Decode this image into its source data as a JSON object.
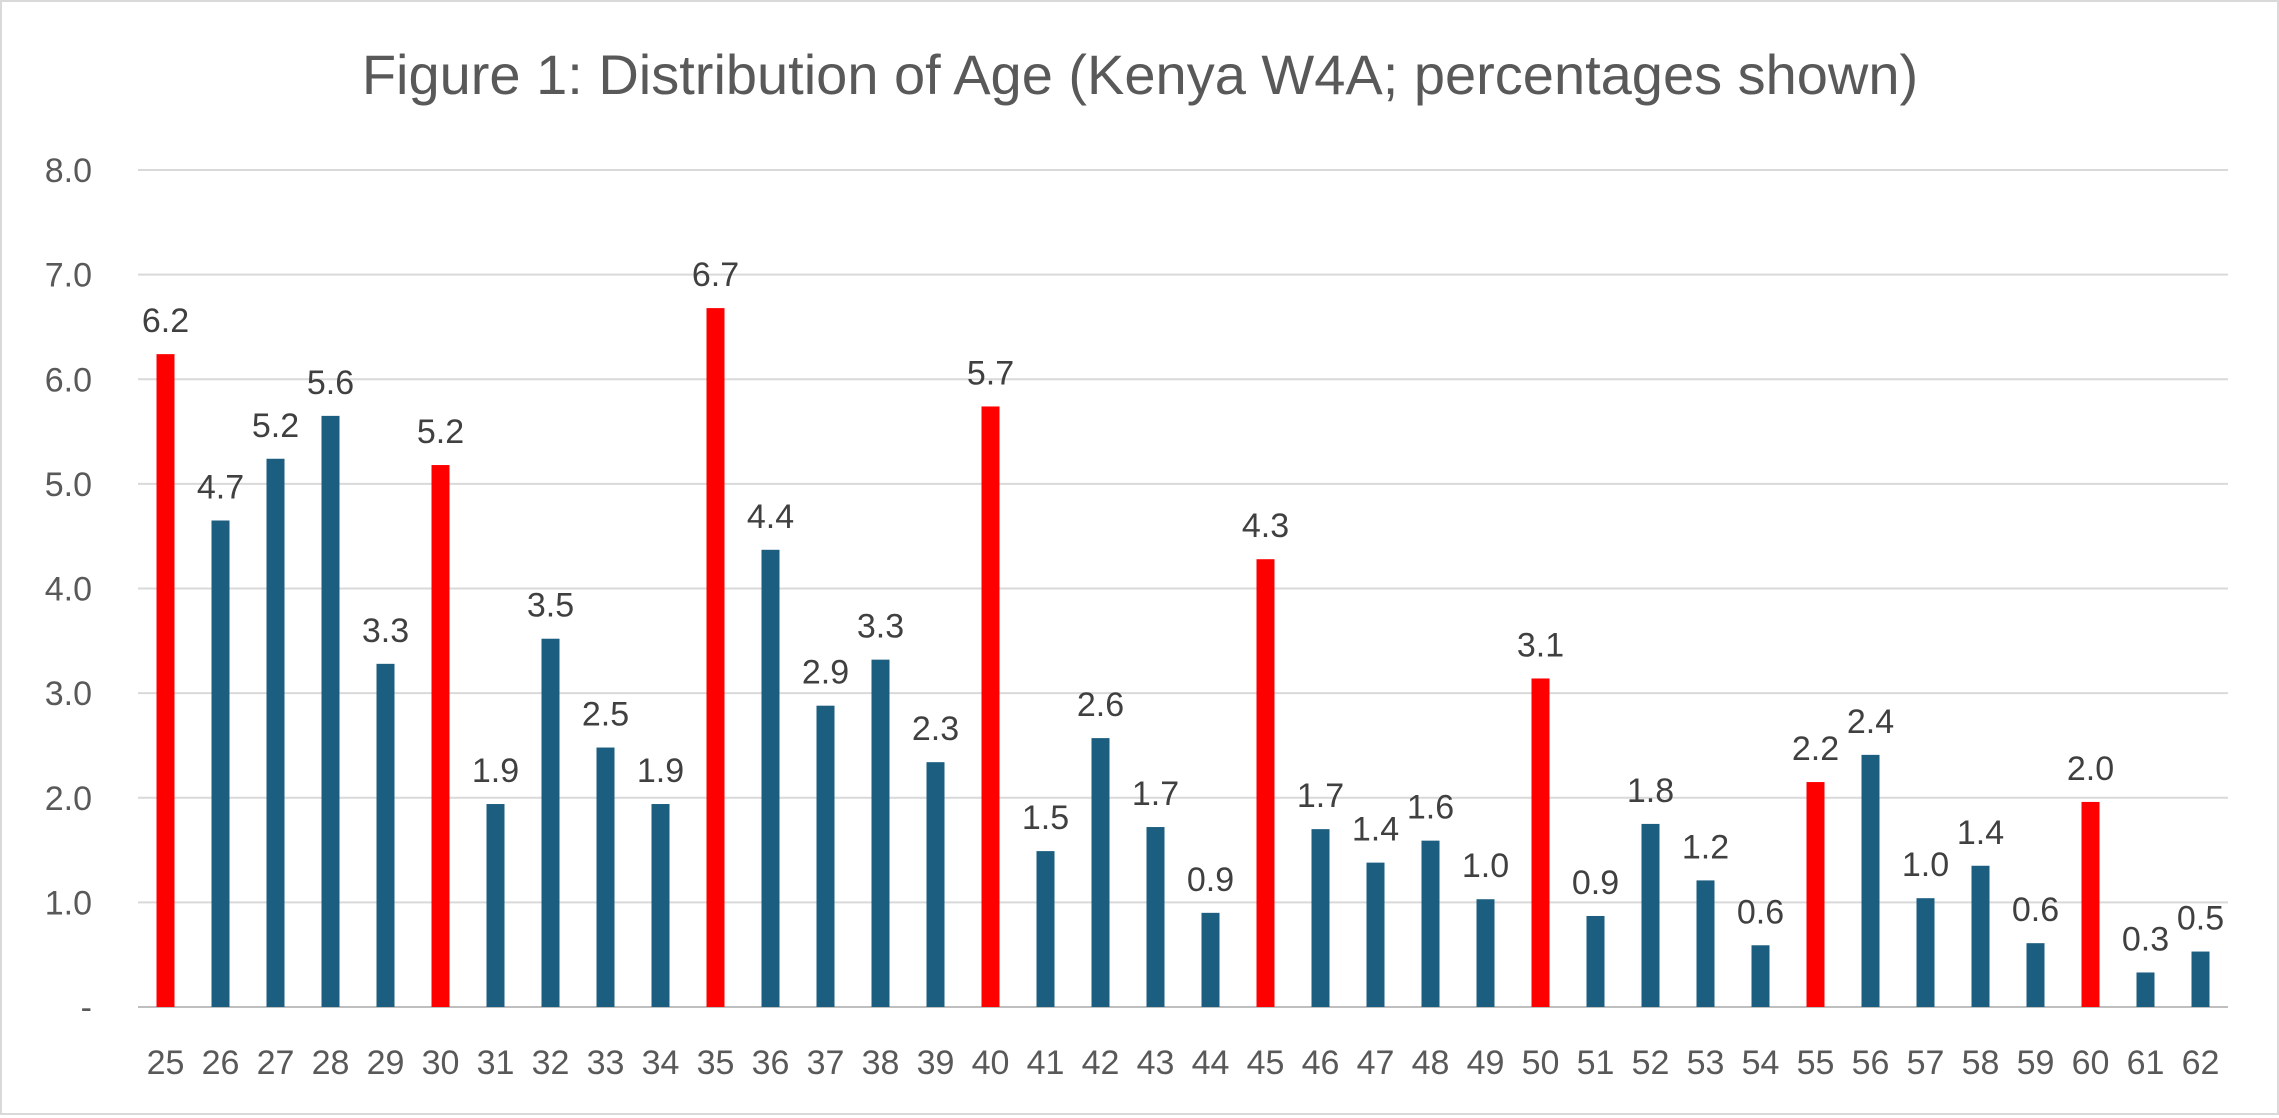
{
  "chart_data": {
    "type": "bar",
    "title": "Figure 1: Distribution of Age (Kenya W4A; percentages shown)",
    "xlabel": "",
    "ylabel": "",
    "ylim": [
      0,
      8
    ],
    "yticks": [
      0,
      1,
      2,
      3,
      4,
      5,
      6,
      7,
      8
    ],
    "ytick_labels": [
      "-",
      "1.0",
      "2.0",
      "3.0",
      "4.0",
      "5.0",
      "6.0",
      "7.0",
      "8.0"
    ],
    "grid": true,
    "legend": "none",
    "colors": {
      "default_bar": "#1b5e7f",
      "highlight_bar": "#ff0000",
      "gridline": "#d9d9d9",
      "text": "#595959"
    },
    "categories": [
      "25",
      "26",
      "27",
      "28",
      "29",
      "30",
      "31",
      "32",
      "33",
      "34",
      "35",
      "36",
      "37",
      "38",
      "39",
      "40",
      "41",
      "42",
      "43",
      "44",
      "45",
      "46",
      "47",
      "48",
      "49",
      "50",
      "51",
      "52",
      "53",
      "54",
      "55",
      "56",
      "57",
      "58",
      "59",
      "60",
      "61",
      "62"
    ],
    "values": [
      6.24,
      4.65,
      5.24,
      5.65,
      3.28,
      5.18,
      1.94,
      3.52,
      2.48,
      1.94,
      6.68,
      4.37,
      2.88,
      3.32,
      2.34,
      5.74,
      1.49,
      2.57,
      1.72,
      0.9,
      4.28,
      1.7,
      1.38,
      1.59,
      1.03,
      3.14,
      0.87,
      1.75,
      1.21,
      0.59,
      2.15,
      2.41,
      1.04,
      1.35,
      0.61,
      1.96,
      0.33,
      0.53
    ],
    "data_labels": [
      "6.2",
      "4.7",
      "5.2",
      "5.6",
      "3.3",
      "5.2",
      "1.9",
      "3.5",
      "2.5",
      "1.9",
      "6.7",
      "4.4",
      "2.9",
      "3.3",
      "2.3",
      "5.7",
      "1.5",
      "2.6",
      "1.7",
      "0.9",
      "4.3",
      "1.7",
      "1.4",
      "1.6",
      "1.0",
      "3.1",
      "0.9",
      "1.8",
      "1.2",
      "0.6",
      "2.2",
      "2.4",
      "1.0",
      "1.4",
      "0.6",
      "2.0",
      "0.3",
      "0.5"
    ],
    "highlighted_categories": [
      "25",
      "30",
      "35",
      "40",
      "45",
      "50",
      "55",
      "60"
    ]
  }
}
